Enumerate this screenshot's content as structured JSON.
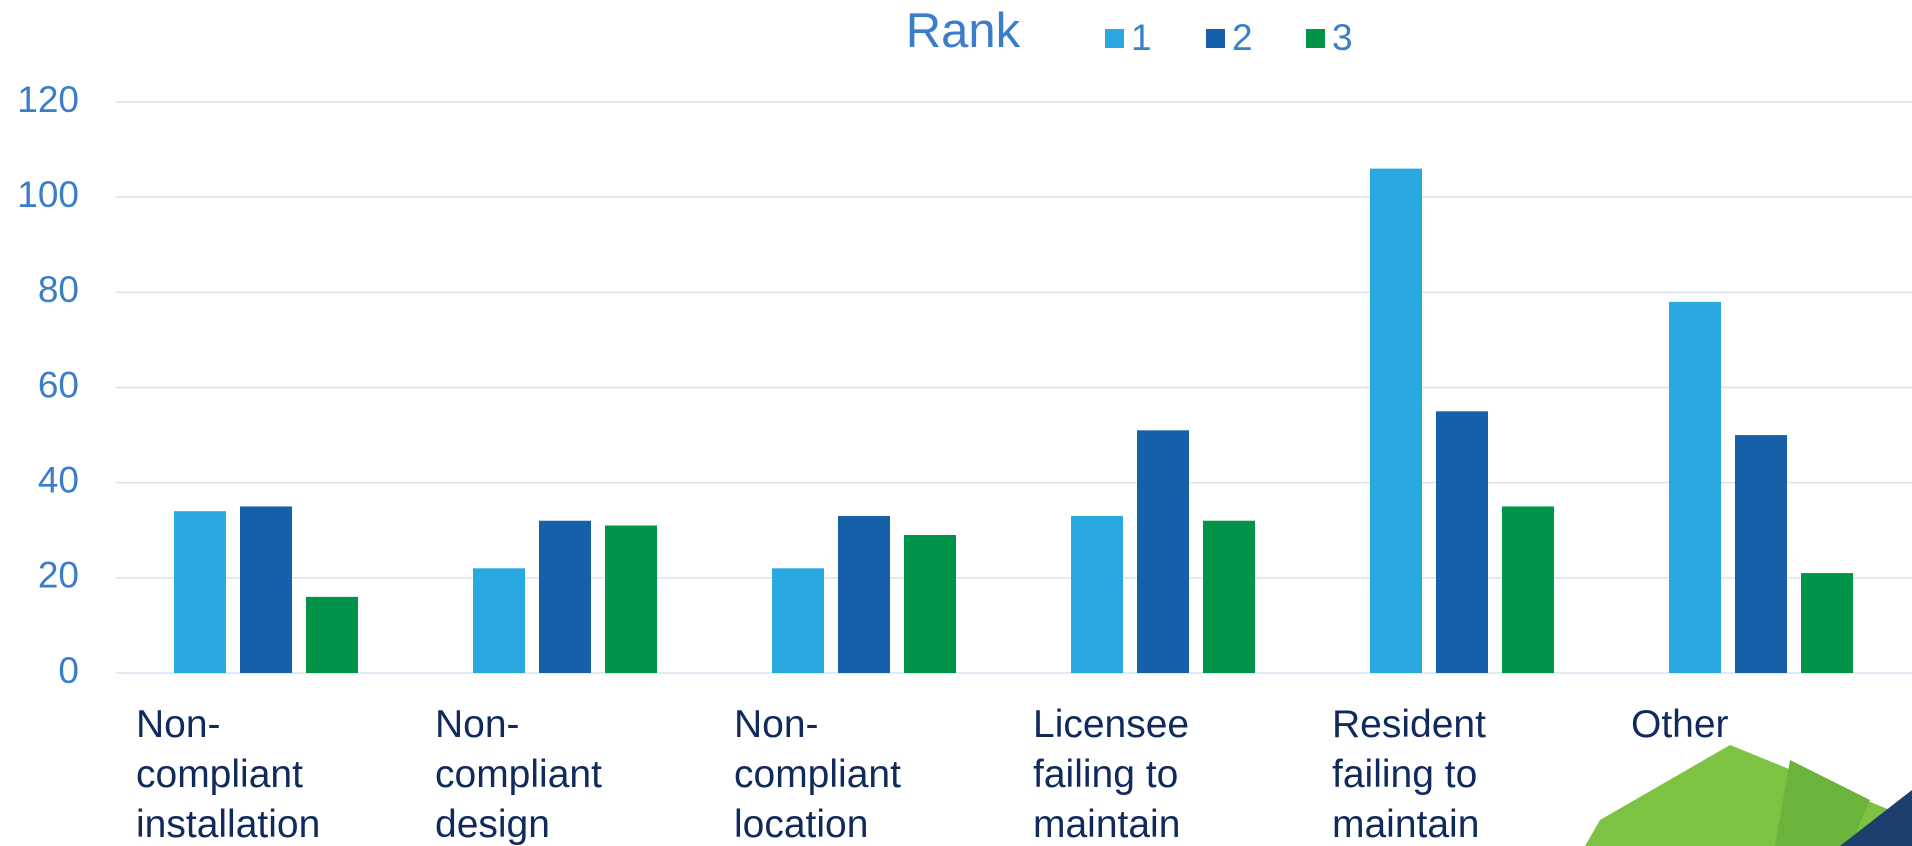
{
  "chart_data": {
    "type": "bar",
    "title": "Rank",
    "categories": [
      "Non-compliant installation",
      "Non-compliant design",
      "Non-compliant location",
      "Licensee failing to maintain",
      "Resident failing to maintain",
      "Other"
    ],
    "series": [
      {
        "name": "1",
        "color": "#29a9e0",
        "values": [
          34,
          22,
          22,
          33,
          106,
          78
        ]
      },
      {
        "name": "2",
        "color": "#1560a8",
        "values": [
          35,
          32,
          33,
          51,
          55,
          50
        ]
      },
      {
        "name": "3",
        "color": "#00934a",
        "values": [
          16,
          31,
          29,
          32,
          35,
          21
        ]
      }
    ],
    "ylim": [
      0,
      120
    ],
    "yticks": [
      0,
      20,
      40,
      60,
      80,
      100,
      120
    ],
    "grid": true
  }
}
